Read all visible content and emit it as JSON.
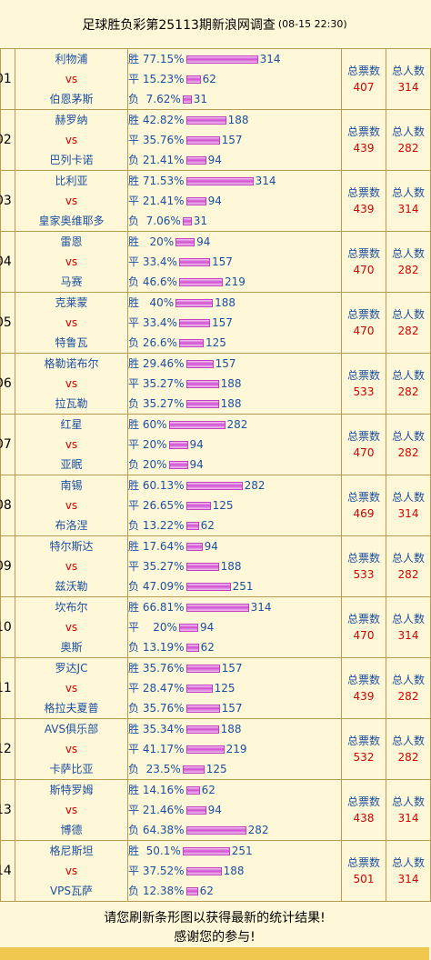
{
  "header": {
    "title": "足球胜负彩第25113期新浪网调查",
    "time": "(08-15 22:30)"
  },
  "labels": {
    "vs": "vs",
    "total_votes": "总票数",
    "total_people": "总人数"
  },
  "matches": [
    {
      "num": "01",
      "home": "利物浦",
      "away": "伯恩茅斯",
      "total": "407",
      "people": "314",
      "outcomes": [
        {
          "label": "胜 77.15%",
          "count": "314",
          "pct": 77.15
        },
        {
          "label": "平 15.23%",
          "count": "62",
          "pct": 15.23
        },
        {
          "label": "负  7.62%",
          "count": "31",
          "pct": 7.62
        }
      ]
    },
    {
      "num": "02",
      "home": "赫罗纳",
      "away": "巴列卡诺",
      "total": "439",
      "people": "282",
      "outcomes": [
        {
          "label": "胜 42.82%",
          "count": "188",
          "pct": 42.82
        },
        {
          "label": "平 35.76%",
          "count": "157",
          "pct": 35.76
        },
        {
          "label": "负 21.41%",
          "count": "94",
          "pct": 21.41
        }
      ]
    },
    {
      "num": "03",
      "home": "比利亚",
      "away": "皇家奥维耶多",
      "total": "439",
      "people": "314",
      "outcomes": [
        {
          "label": "胜 71.53%",
          "count": "314",
          "pct": 71.53
        },
        {
          "label": "平 21.41%",
          "count": "94",
          "pct": 21.41
        },
        {
          "label": "负  7.06%",
          "count": "31",
          "pct": 7.06
        }
      ]
    },
    {
      "num": "04",
      "home": "雷恩",
      "away": "马赛",
      "total": "470",
      "people": "282",
      "outcomes": [
        {
          "label": "胜   20%",
          "count": "94",
          "pct": 20
        },
        {
          "label": "平 33.4%",
          "count": "157",
          "pct": 33.4
        },
        {
          "label": "负 46.6%",
          "count": "219",
          "pct": 46.6
        }
      ]
    },
    {
      "num": "05",
      "home": "克莱蒙",
      "away": "特鲁瓦",
      "total": "470",
      "people": "282",
      "outcomes": [
        {
          "label": "胜   40%",
          "count": "188",
          "pct": 40
        },
        {
          "label": "平 33.4%",
          "count": "157",
          "pct": 33.4
        },
        {
          "label": "负 26.6%",
          "count": "125",
          "pct": 26.6
        }
      ]
    },
    {
      "num": "06",
      "home": "格勒诺布尔",
      "away": "拉瓦勒",
      "total": "533",
      "people": "282",
      "outcomes": [
        {
          "label": "胜 29.46%",
          "count": "157",
          "pct": 29.46
        },
        {
          "label": "平 35.27%",
          "count": "188",
          "pct": 35.27
        },
        {
          "label": "负 35.27%",
          "count": "188",
          "pct": 35.27
        }
      ]
    },
    {
      "num": "07",
      "home": "红星",
      "away": "亚眠",
      "total": "470",
      "people": "282",
      "outcomes": [
        {
          "label": "胜 60%",
          "count": "282",
          "pct": 60
        },
        {
          "label": "平 20%",
          "count": "94",
          "pct": 20
        },
        {
          "label": "负 20%",
          "count": "94",
          "pct": 20
        }
      ]
    },
    {
      "num": "08",
      "home": "南锡",
      "away": "布洛涅",
      "total": "469",
      "people": "314",
      "outcomes": [
        {
          "label": "胜 60.13%",
          "count": "282",
          "pct": 60.13
        },
        {
          "label": "平 26.65%",
          "count": "125",
          "pct": 26.65
        },
        {
          "label": "负 13.22%",
          "count": "62",
          "pct": 13.22
        }
      ]
    },
    {
      "num": "09",
      "home": "特尔斯达",
      "away": "兹沃勒",
      "total": "533",
      "people": "282",
      "outcomes": [
        {
          "label": "胜 17.64%",
          "count": "94",
          "pct": 17.64
        },
        {
          "label": "平 35.27%",
          "count": "188",
          "pct": 35.27
        },
        {
          "label": "负 47.09%",
          "count": "251",
          "pct": 47.09
        }
      ]
    },
    {
      "num": "10",
      "home": "坎布尔",
      "away": "奥斯",
      "total": "470",
      "people": "314",
      "outcomes": [
        {
          "label": "胜 66.81%",
          "count": "314",
          "pct": 66.81
        },
        {
          "label": "平    20%",
          "count": "94",
          "pct": 20
        },
        {
          "label": "负 13.19%",
          "count": "62",
          "pct": 13.19
        }
      ]
    },
    {
      "num": "11",
      "home": "罗达JC",
      "away": "格拉夫夏普",
      "total": "439",
      "people": "282",
      "outcomes": [
        {
          "label": "胜 35.76%",
          "count": "157",
          "pct": 35.76
        },
        {
          "label": "平 28.47%",
          "count": "125",
          "pct": 28.47
        },
        {
          "label": "负 35.76%",
          "count": "157",
          "pct": 35.76
        }
      ]
    },
    {
      "num": "12",
      "home": "AVS俱乐部",
      "away": "卡萨比亚",
      "total": "532",
      "people": "282",
      "outcomes": [
        {
          "label": "胜 35.34%",
          "count": "188",
          "pct": 35.34
        },
        {
          "label": "平 41.17%",
          "count": "219",
          "pct": 41.17
        },
        {
          "label": "负  23.5%",
          "count": "125",
          "pct": 23.5
        }
      ]
    },
    {
      "num": "13",
      "home": "斯特罗姆",
      "away": "博德",
      "total": "438",
      "people": "314",
      "outcomes": [
        {
          "label": "胜 14.16%",
          "count": "62",
          "pct": 14.16
        },
        {
          "label": "平 21.46%",
          "count": "94",
          "pct": 21.46
        },
        {
          "label": "负 64.38%",
          "count": "282",
          "pct": 64.38
        }
      ]
    },
    {
      "num": "14",
      "home": "格尼斯坦",
      "away": "VPS瓦萨",
      "total": "501",
      "people": "314",
      "outcomes": [
        {
          "label": "胜  50.1%",
          "count": "251",
          "pct": 50.1
        },
        {
          "label": "平 37.52%",
          "count": "188",
          "pct": 37.52
        },
        {
          "label": "负 12.38%",
          "count": "62",
          "pct": 12.38
        }
      ]
    }
  ],
  "footer": {
    "line1": "请您刷新条形图以获得最新的统计结果!",
    "line2": "感谢您的参与!"
  },
  "colors": {
    "team": "#1a4fa0",
    "vs": "#d00000",
    "bar": "#d050d0",
    "background": "#fff8d8"
  }
}
